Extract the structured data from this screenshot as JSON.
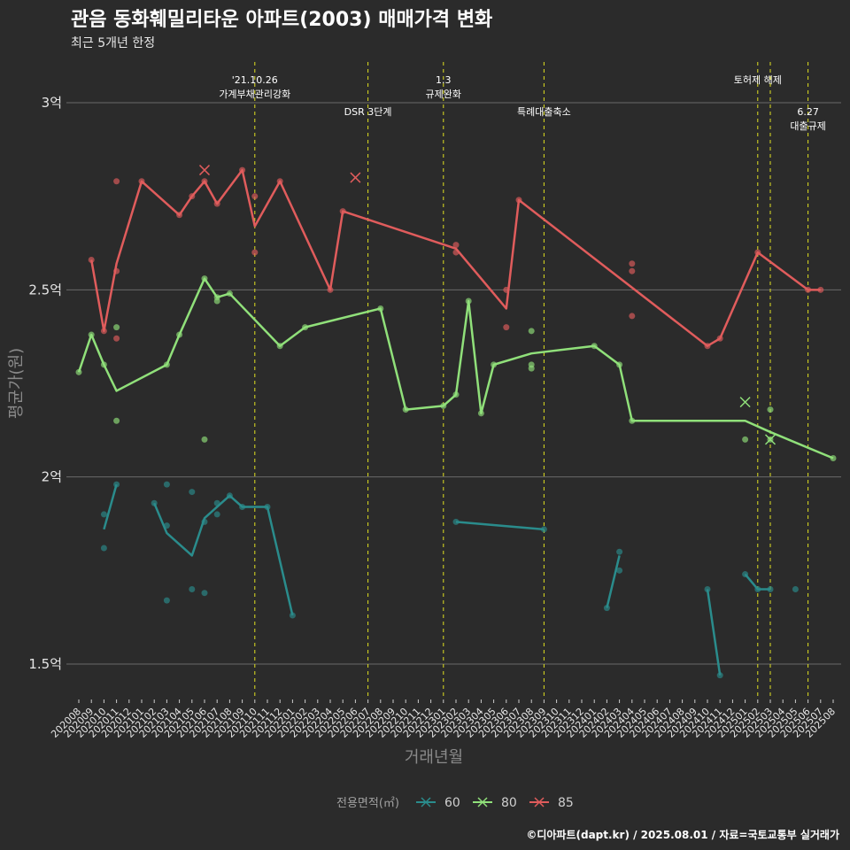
{
  "chart_data": {
    "type": "line",
    "title": "관음 동화훼밀리타운 아파트(2003) 매매가격 변화",
    "subtitle": "최근 5개년 한정",
    "xlabel": "거래년월",
    "ylabel": "평균가(원)",
    "caption": "©디아파트(dapt.kr) / 2025.08.01 / 자료=국토교통부 실거래가",
    "legend_title": "전용면적(㎡)",
    "legend_position": "bottom",
    "grid": true,
    "y_ticks": [
      {
        "value": 1.5,
        "label": "1.5억"
      },
      {
        "value": 2.0,
        "label": "2억"
      },
      {
        "value": 2.5,
        "label": "2.5억"
      },
      {
        "value": 3.0,
        "label": "3억"
      }
    ],
    "ylim": [
      1.4,
      3.1
    ],
    "x_categories": [
      "202008",
      "202009",
      "202010",
      "202011",
      "202012",
      "202101",
      "202102",
      "202103",
      "202104",
      "202105",
      "202106",
      "202107",
      "202108",
      "202109",
      "202110",
      "202111",
      "202112",
      "202201",
      "202202",
      "202203",
      "202204",
      "202205",
      "202206",
      "202207",
      "202208",
      "202209",
      "202210",
      "202211",
      "202212",
      "202301",
      "202302",
      "202303",
      "202304",
      "202305",
      "202306",
      "202307",
      "202308",
      "202309",
      "202310",
      "202311",
      "202312",
      "202401",
      "202402",
      "202403",
      "202404",
      "202405",
      "202406",
      "202407",
      "202408",
      "202409",
      "202410",
      "202411",
      "202412",
      "202501",
      "202502",
      "202503",
      "202504",
      "202505",
      "202506",
      "202507",
      "202508"
    ],
    "events": [
      {
        "x": 14,
        "label": "'21.10.26\n가계부채관리강화",
        "level": 0
      },
      {
        "x": 23,
        "label": "DSR 3단계",
        "level": 1
      },
      {
        "x": 29,
        "label": "1.3\n규제완화",
        "level": 0
      },
      {
        "x": 37,
        "label": "특례대출축소",
        "level": 1
      },
      {
        "x": 54,
        "label": "토허제 해제",
        "level": 0
      },
      {
        "x": 55,
        "label": "",
        "level": 0
      },
      {
        "x": 58,
        "label": "6.27\n대출규제",
        "level": 1
      }
    ],
    "series": [
      {
        "name": "60",
        "color": "#2a8c8c",
        "segments": [
          [
            [
              2,
              1.86
            ],
            [
              3,
              1.98
            ]
          ],
          [
            [
              6,
              1.93
            ],
            [
              7,
              1.85
            ],
            [
              9,
              1.79
            ],
            [
              10,
              1.89
            ],
            [
              11,
              1.92
            ],
            [
              12,
              1.95
            ],
            [
              13,
              1.92
            ],
            [
              14,
              1.92
            ],
            [
              15,
              1.92
            ],
            [
              17,
              1.63
            ]
          ],
          [
            [
              30,
              1.88
            ],
            [
              37,
              1.86
            ]
          ],
          [
            [
              42,
              1.65
            ],
            [
              43,
              1.79
            ]
          ],
          [
            [
              50,
              1.7
            ],
            [
              51,
              1.47
            ]
          ],
          [
            [
              53,
              1.74
            ],
            [
              54,
              1.7
            ],
            [
              55,
              1.7
            ]
          ]
        ],
        "points": [
          [
            2,
            1.9
          ],
          [
            2,
            1.81
          ],
          [
            3,
            1.98
          ],
          [
            6,
            1.93
          ],
          [
            7,
            1.98
          ],
          [
            7,
            1.87
          ],
          [
            7,
            1.67
          ],
          [
            9,
            1.96
          ],
          [
            9,
            1.7
          ],
          [
            10,
            1.88
          ],
          [
            10,
            1.69
          ],
          [
            11,
            1.93
          ],
          [
            11,
            1.9
          ],
          [
            12,
            1.95
          ],
          [
            13,
            1.92
          ],
          [
            15,
            1.92
          ],
          [
            17,
            1.63
          ],
          [
            30,
            1.88
          ],
          [
            37,
            1.86
          ],
          [
            42,
            1.65
          ],
          [
            43,
            1.8
          ],
          [
            43,
            1.75
          ],
          [
            50,
            1.7
          ],
          [
            51,
            1.47
          ],
          [
            53,
            1.74
          ],
          [
            54,
            1.7
          ],
          [
            55,
            1.7
          ],
          [
            57,
            1.7
          ]
        ],
        "crosses": []
      },
      {
        "name": "80",
        "color": "#90e07a",
        "segments": [
          [
            [
              0,
              2.28
            ],
            [
              1,
              2.38
            ],
            [
              2,
              2.3
            ],
            [
              3,
              2.23
            ],
            [
              7,
              2.3
            ],
            [
              8,
              2.38
            ],
            [
              10,
              2.53
            ],
            [
              11,
              2.48
            ],
            [
              12,
              2.49
            ],
            [
              16,
              2.35
            ],
            [
              18,
              2.4
            ],
            [
              24,
              2.45
            ],
            [
              26,
              2.18
            ],
            [
              29,
              2.19
            ],
            [
              30,
              2.22
            ],
            [
              31,
              2.47
            ],
            [
              32,
              2.17
            ],
            [
              33,
              2.3
            ],
            [
              36,
              2.33
            ],
            [
              41,
              2.35
            ],
            [
              43,
              2.3
            ],
            [
              44,
              2.15
            ],
            [
              53,
              2.15
            ],
            [
              55,
              2.12
            ],
            [
              60,
              2.05
            ]
          ]
        ],
        "points": [
          [
            0,
            2.28
          ],
          [
            1,
            2.38
          ],
          [
            2,
            2.3
          ],
          [
            3,
            2.4
          ],
          [
            3,
            2.15
          ],
          [
            7,
            2.3
          ],
          [
            8,
            2.38
          ],
          [
            10,
            2.53
          ],
          [
            10,
            2.1
          ],
          [
            11,
            2.48
          ],
          [
            11,
            2.47
          ],
          [
            12,
            2.49
          ],
          [
            16,
            2.35
          ],
          [
            18,
            2.4
          ],
          [
            24,
            2.45
          ],
          [
            26,
            2.18
          ],
          [
            29,
            2.19
          ],
          [
            30,
            2.22
          ],
          [
            31,
            2.47
          ],
          [
            32,
            2.17
          ],
          [
            33,
            2.3
          ],
          [
            36,
            2.39
          ],
          [
            36,
            2.3
          ],
          [
            36,
            2.29
          ],
          [
            41,
            2.35
          ],
          [
            43,
            2.3
          ],
          [
            44,
            2.15
          ],
          [
            53,
            2.1
          ],
          [
            55,
            2.18
          ],
          [
            55,
            2.1
          ],
          [
            60,
            2.05
          ]
        ],
        "crosses": [
          [
            53,
            2.2
          ],
          [
            55,
            2.1
          ]
        ]
      },
      {
        "name": "85",
        "color": "#e05c5c",
        "segments": [
          [
            [
              1,
              2.58
            ],
            [
              2,
              2.39
            ],
            [
              3,
              2.57
            ],
            [
              5,
              2.79
            ],
            [
              8,
              2.7
            ],
            [
              9,
              2.75
            ],
            [
              10,
              2.79
            ],
            [
              11,
              2.73
            ],
            [
              13,
              2.82
            ],
            [
              14,
              2.67
            ],
            [
              16,
              2.79
            ],
            [
              20,
              2.5
            ],
            [
              21,
              2.71
            ],
            [
              30,
              2.61
            ],
            [
              34,
              2.45
            ],
            [
              35,
              2.74
            ],
            [
              50,
              2.35
            ],
            [
              51,
              2.37
            ],
            [
              54,
              2.6
            ],
            [
              58,
              2.5
            ],
            [
              59,
              2.5
            ]
          ]
        ],
        "points": [
          [
            1,
            2.58
          ],
          [
            2,
            2.39
          ],
          [
            3,
            2.79
          ],
          [
            3,
            2.55
          ],
          [
            3,
            2.37
          ],
          [
            5,
            2.79
          ],
          [
            8,
            2.7
          ],
          [
            9,
            2.75
          ],
          [
            10,
            2.79
          ],
          [
            11,
            2.73
          ],
          [
            13,
            2.82
          ],
          [
            14,
            2.75
          ],
          [
            14,
            2.6
          ],
          [
            16,
            2.79
          ],
          [
            20,
            2.5
          ],
          [
            21,
            2.71
          ],
          [
            30,
            2.62
          ],
          [
            30,
            2.6
          ],
          [
            34,
            2.5
          ],
          [
            34,
            2.4
          ],
          [
            35,
            2.74
          ],
          [
            44,
            2.57
          ],
          [
            44,
            2.55
          ],
          [
            44,
            2.43
          ],
          [
            50,
            2.35
          ],
          [
            51,
            2.37
          ],
          [
            54,
            2.6
          ],
          [
            58,
            2.5
          ],
          [
            59,
            2.5
          ]
        ],
        "crosses": [
          [
            10,
            2.82
          ],
          [
            22,
            2.8
          ]
        ]
      }
    ]
  }
}
